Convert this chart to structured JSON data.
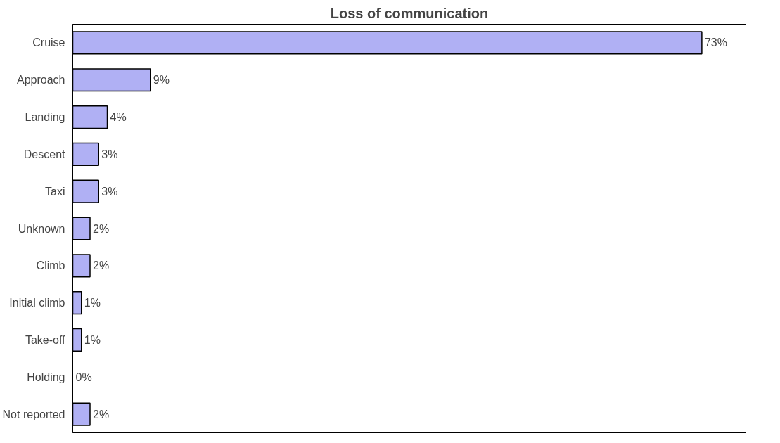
{
  "chart_data": {
    "type": "bar",
    "orientation": "horizontal",
    "title": "Loss of communication",
    "categories": [
      "Cruise",
      "Approach",
      "Landing",
      "Descent",
      "Taxi",
      "Unknown",
      "Climb",
      "Initial climb",
      "Take-off",
      "Holding",
      "Not reported"
    ],
    "values": [
      73,
      9,
      4,
      3,
      3,
      2,
      2,
      1,
      1,
      0,
      2
    ],
    "value_labels": [
      "73%",
      "9%",
      "4%",
      "3%",
      "3%",
      "2%",
      "2%",
      "1%",
      "1%",
      "0%",
      "2%"
    ],
    "color": "#b0b0f4",
    "grid": false
  }
}
